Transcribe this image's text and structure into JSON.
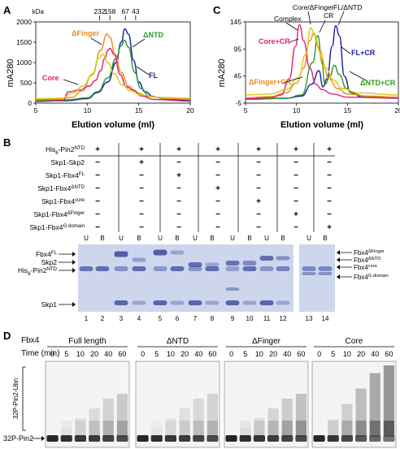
{
  "panel_labels": {
    "a": "A",
    "b": "B",
    "c": "C",
    "d": "D"
  },
  "colors": {
    "fl": "#1a1aa6",
    "dntd": "#2a9a2a",
    "dfinger": "#f08a1a",
    "core": "#e0207a",
    "yellow": "#d4cc10",
    "gel_bg": "#cdd6ec",
    "band": "#3a4a9e"
  },
  "chart_data": [
    {
      "type": "line",
      "panel": "A",
      "xlabel": "Elution volume (ml)",
      "ylabel": "mA280",
      "xlim": [
        5,
        20
      ],
      "ylim": [
        0,
        2000
      ],
      "xticks": [
        "5",
        "10",
        "15",
        "20"
      ],
      "yticks": [
        "0",
        "500",
        "1000",
        "1500",
        "2000"
      ],
      "kda_label": "kDa",
      "markers": [
        {
          "x": 11.2,
          "label": "232"
        },
        {
          "x": 12.2,
          "label": "158"
        },
        {
          "x": 13.7,
          "label": "67"
        },
        {
          "x": 14.7,
          "label": "43"
        }
      ],
      "series": [
        {
          "name": "FL",
          "color": "#1a1aa6",
          "points": [
            [
              5,
              50
            ],
            [
              8,
              60
            ],
            [
              10,
              110
            ],
            [
              11,
              260
            ],
            [
              12,
              520
            ],
            [
              12.8,
              1000
            ],
            [
              13.3,
              1500
            ],
            [
              13.65,
              1830
            ],
            [
              14.0,
              1700
            ],
            [
              14.5,
              1050
            ],
            [
              15,
              520
            ],
            [
              15.6,
              280
            ],
            [
              16.5,
              150
            ],
            [
              18,
              90
            ],
            [
              20,
              80
            ]
          ]
        },
        {
          "name": "ΔNTD",
          "color": "#2a9a2a",
          "points": [
            [
              5,
              70
            ],
            [
              8,
              80
            ],
            [
              10,
              130
            ],
            [
              11,
              280
            ],
            [
              12,
              620
            ],
            [
              12.8,
              1100
            ],
            [
              13.3,
              1420
            ],
            [
              13.6,
              1550
            ],
            [
              14.0,
              1380
            ],
            [
              14.6,
              760
            ],
            [
              15.2,
              360
            ],
            [
              16,
              180
            ],
            [
              17.5,
              110
            ],
            [
              20,
              90
            ]
          ]
        },
        {
          "name": "ΔFinger",
          "color": "#f08a1a",
          "points": [
            [
              5,
              90
            ],
            [
              7,
              100
            ],
            [
              8.5,
              140
            ],
            [
              9.5,
              300
            ],
            [
              10.5,
              700
            ],
            [
              11.3,
              1300
            ],
            [
              11.9,
              1700
            ],
            [
              12.2,
              1620
            ],
            [
              12.7,
              1200
            ],
            [
              13.3,
              750
            ],
            [
              14,
              420
            ],
            [
              14.8,
              250
            ],
            [
              16,
              160
            ],
            [
              18,
              110
            ],
            [
              20,
              100
            ]
          ]
        },
        {
          "name": "Core",
          "color": "#e0207a",
          "points": [
            [
              5,
              40
            ],
            [
              7.6,
              60
            ],
            [
              8.2,
              280
            ],
            [
              9.2,
              320
            ],
            [
              10.2,
              420
            ],
            [
              10.8,
              560
            ],
            [
              11.3,
              800
            ],
            [
              11.7,
              1100
            ],
            [
              12.0,
              1300
            ],
            [
              12.2,
              1350
            ],
            [
              12.6,
              1200
            ],
            [
              13.2,
              700
            ],
            [
              13.8,
              400
            ],
            [
              14.5,
              320
            ],
            [
              15.2,
              180
            ],
            [
              16.5,
              90
            ],
            [
              20,
              50
            ]
          ]
        },
        {
          "name": "",
          "color": "#d4cc10",
          "points": [
            [
              5,
              110
            ],
            [
              7.5,
              120
            ],
            [
              8.6,
              250
            ],
            [
              9.6,
              420
            ],
            [
              10.5,
              720
            ],
            [
              11.1,
              1100
            ],
            [
              11.5,
              1200
            ],
            [
              12,
              1000
            ],
            [
              12.6,
              720
            ],
            [
              13.4,
              450
            ],
            [
              14.2,
              300
            ],
            [
              15.2,
              200
            ],
            [
              17,
              140
            ],
            [
              20,
              120
            ]
          ]
        }
      ],
      "curve_labels": [
        {
          "series": "ΔFinger",
          "text": "ΔFinger",
          "color": "#f08a1a"
        },
        {
          "series": "ΔNTD",
          "text": "ΔNTD",
          "color": "#2a9a2a"
        },
        {
          "series": "FL",
          "text": "FL",
          "color": "#1a1aa6"
        },
        {
          "series": "Core",
          "text": "Core",
          "color": "#e0207a"
        }
      ]
    },
    {
      "type": "line",
      "panel": "C",
      "xlabel": "Elution volume (ml)",
      "ylabel": "mA280",
      "xlim": [
        5,
        20
      ],
      "ylim": [
        -5,
        145
      ],
      "xticks": [
        "5",
        "10",
        "15",
        "20"
      ],
      "yticks": [
        "-5",
        "45",
        "95",
        "145"
      ],
      "series": [
        {
          "name": "FL+CR",
          "color": "#1a1aa6",
          "points": [
            [
              5,
              2
            ],
            [
              9,
              4
            ],
            [
              10.5,
              8
            ],
            [
              11.5,
              30
            ],
            [
              12.2,
              55
            ],
            [
              12.6,
              25
            ],
            [
              13,
              40
            ],
            [
              13.5,
              100
            ],
            [
              13.85,
              138
            ],
            [
              14.2,
              120
            ],
            [
              14.7,
              45
            ],
            [
              15.3,
              15
            ],
            [
              16.5,
              6
            ],
            [
              20,
              4
            ]
          ]
        },
        {
          "name": "ΔNTD+CR",
          "color": "#2a9a2a",
          "points": [
            [
              5,
              2
            ],
            [
              9,
              4
            ],
            [
              10.5,
              10
            ],
            [
              11.6,
              70
            ],
            [
              12.1,
              120
            ],
            [
              12.4,
              90
            ],
            [
              12.8,
              30
            ],
            [
              13.3,
              45
            ],
            [
              13.7,
              65
            ],
            [
              14.2,
              48
            ],
            [
              14.9,
              22
            ],
            [
              15.6,
              12
            ],
            [
              17,
              6
            ],
            [
              20,
              5
            ]
          ]
        },
        {
          "name": "ΔFinger+CR",
          "color": "#f08a1a",
          "points": [
            [
              5,
              5
            ],
            [
              7.5,
              7
            ],
            [
              9,
              14
            ],
            [
              10,
              32
            ],
            [
              10.7,
              60
            ],
            [
              11.3,
              110
            ],
            [
              11.7,
              124
            ],
            [
              12.1,
              100
            ],
            [
              12.6,
              65
            ],
            [
              13.2,
              40
            ],
            [
              14,
              22
            ],
            [
              15,
              12
            ],
            [
              17,
              8
            ],
            [
              20,
              6
            ]
          ]
        },
        {
          "name": "Core+CR",
          "color": "#e0207a",
          "points": [
            [
              5,
              3
            ],
            [
              7.5,
              5
            ],
            [
              8.5,
              10
            ],
            [
              9.3,
              40
            ],
            [
              9.9,
              100
            ],
            [
              10.3,
              140
            ],
            [
              10.7,
              110
            ],
            [
              11.3,
              60
            ],
            [
              11.9,
              30
            ],
            [
              12.5,
              20
            ],
            [
              13.5,
              12
            ],
            [
              15,
              6
            ],
            [
              20,
              4
            ]
          ]
        },
        {
          "name": "",
          "color": "#d4cc10",
          "points": [
            [
              5,
              10
            ],
            [
              7.5,
              12
            ],
            [
              9,
              20
            ],
            [
              10.2,
              42
            ],
            [
              10.9,
              85
            ],
            [
              11.4,
              134
            ],
            [
              11.8,
              120
            ],
            [
              12.3,
              90
            ],
            [
              12.9,
              60
            ],
            [
              13.6,
              38
            ],
            [
              14.5,
              22
            ],
            [
              16,
              14
            ],
            [
              20,
              10
            ]
          ]
        }
      ],
      "curve_labels": [
        {
          "series": "Core+CR",
          "text": "Core+CR",
          "color": "#e0207a"
        },
        {
          "series": "FL+CR",
          "text": "FL+CR",
          "color": "#1a1aa6"
        },
        {
          "series": "ΔFinger+CR",
          "text": "ΔFinger+CR",
          "color": "#f08a1a"
        },
        {
          "series": "ΔNTD+CR",
          "text": "ΔNTD+CR",
          "color": "#2a9a2a"
        }
      ],
      "peak_labels": [
        {
          "text": "Complex"
        },
        {
          "text": "Core/ΔFinger"
        },
        {
          "text": "CR"
        },
        {
          "text": "FL/ΔNTD"
        }
      ]
    }
  ],
  "panel_b": {
    "rows": [
      {
        "label": "His6-Pin2",
        "sup": "NTD",
        "values": [
          "+",
          "+",
          "+",
          "+",
          "+",
          "+",
          "+"
        ]
      },
      {
        "label": "Skp1-Skp2",
        "sup": "",
        "values": [
          "−",
          "+",
          "−",
          "−",
          "−",
          "−",
          "−"
        ]
      },
      {
        "label": "Skp1-Fbx4",
        "sup": "FL",
        "values": [
          "−",
          "−",
          "+",
          "−",
          "−",
          "−",
          "−"
        ]
      },
      {
        "label": "Skp1-Fbx4",
        "sup": "ΔNTD",
        "values": [
          "−",
          "−",
          "−",
          "+",
          "−",
          "−",
          "−"
        ]
      },
      {
        "label": "Skp1-Fbx4",
        "sup": "core",
        "values": [
          "−",
          "−",
          "−",
          "−",
          "+",
          "−",
          "−"
        ]
      },
      {
        "label": "Skp1-Fbx4",
        "sup": "ΔFinger",
        "values": [
          "−",
          "−",
          "−",
          "−",
          "−",
          "+",
          "−"
        ]
      },
      {
        "label": "Skp1-Fbx4",
        "sup": "G domain",
        "values": [
          "−",
          "−",
          "−",
          "−",
          "−",
          "−",
          "+"
        ]
      }
    ],
    "ub_labels": [
      "U",
      "B",
      "U",
      "B",
      "U",
      "B",
      "U",
      "B",
      "U",
      "B",
      "U",
      "B",
      "U",
      "B"
    ],
    "lane_numbers": [
      "1",
      "2",
      "3",
      "4",
      "5",
      "6",
      "7",
      "8",
      "9",
      "10",
      "11",
      "12",
      "13",
      "14"
    ],
    "left_markers": [
      {
        "text": "Fbx4",
        "sup": "FL"
      },
      {
        "text": "Skp2",
        "sup": ""
      },
      {
        "text": "His6-Pin2",
        "sup": "NTD"
      },
      {
        "text": "Skp1",
        "sup": ""
      }
    ],
    "right_markers": [
      {
        "text": "Fbx4",
        "sup": "ΔFinger"
      },
      {
        "text": "Fbx4",
        "sup": "ΔNTD"
      },
      {
        "text": "Fbx4",
        "sup": "core"
      },
      {
        "text": "Fbx4",
        "sup": "G domain"
      }
    ]
  },
  "panel_d": {
    "row_label": "Fbx4",
    "time_label": "Time (min)",
    "groups": [
      "Full length",
      "ΔNTD",
      "ΔFinger",
      "Core"
    ],
    "times": [
      "0",
      "5",
      "10",
      "20",
      "40",
      "60"
    ],
    "ubn_label": "32P-Pin2-Ubn",
    "pin2_label": "32P-Pin2"
  }
}
